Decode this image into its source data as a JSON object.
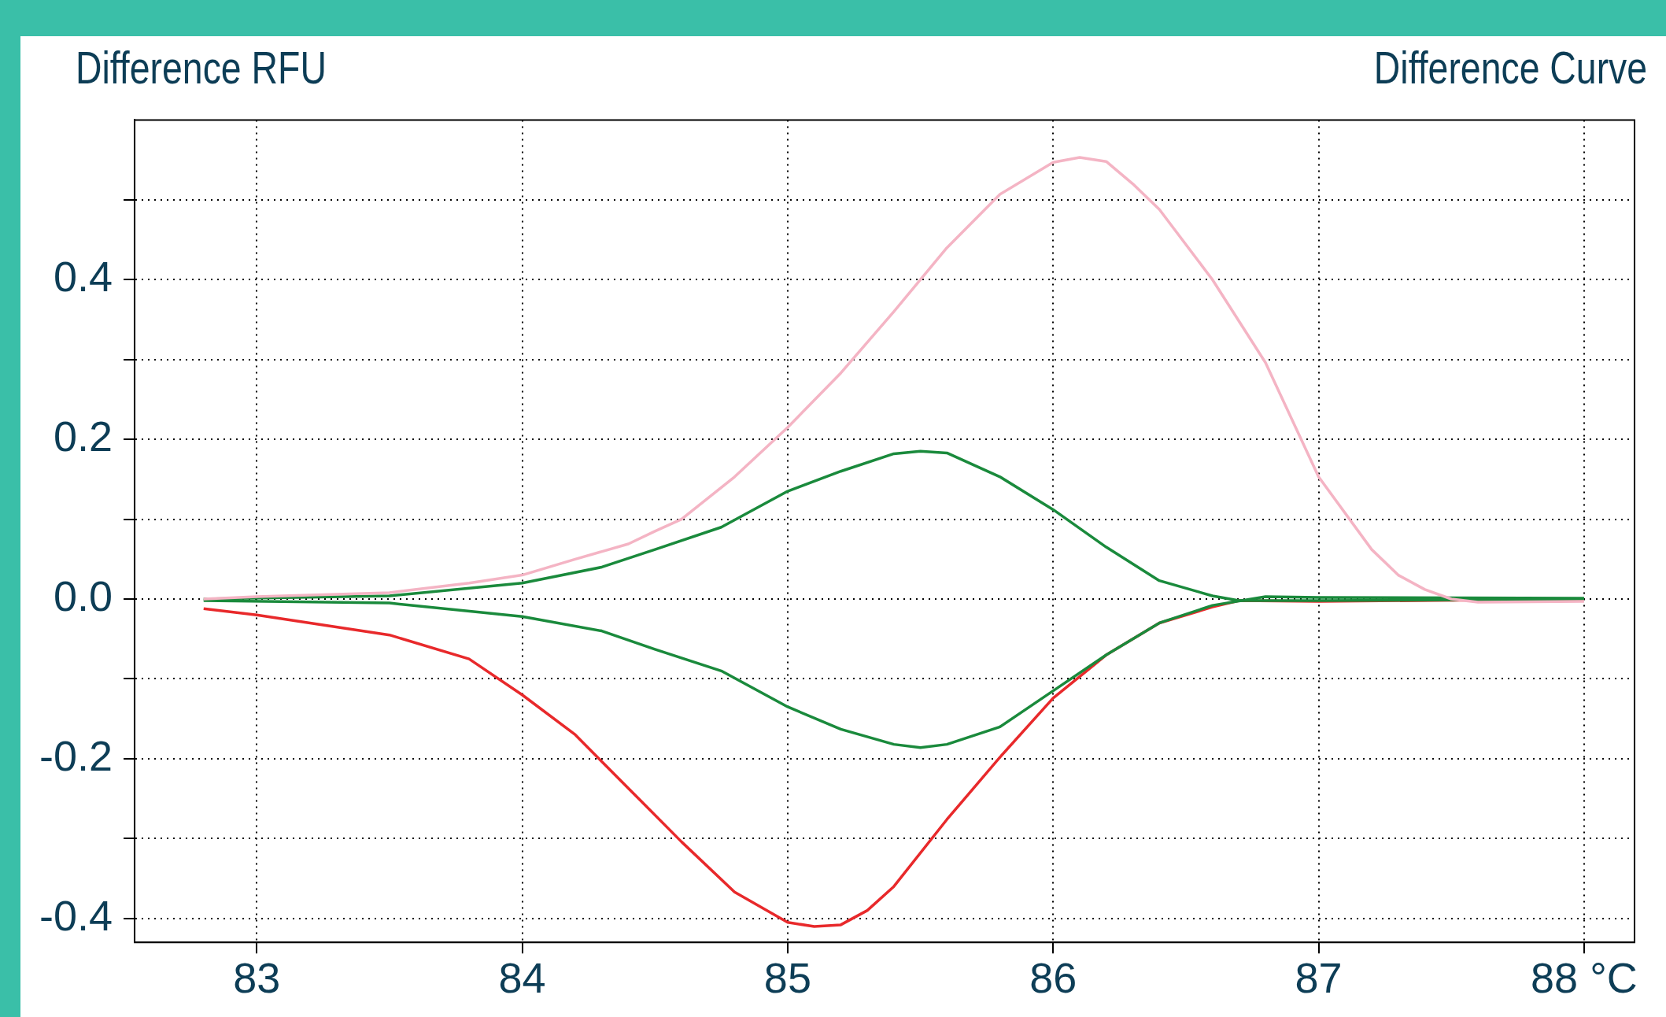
{
  "chart_data": {
    "type": "line",
    "title": "Difference Curve",
    "ylabel": "Difference RFU",
    "xlim": [
      82.54,
      88.19
    ],
    "ylim": [
      -0.43,
      0.6
    ],
    "xticks": [
      83,
      84,
      85,
      86,
      87,
      {
        "value": 88,
        "label": "88 °C"
      }
    ],
    "yticks": [
      {
        "value": -0.4,
        "label": "-0.4"
      },
      {
        "value": -0.3,
        "label": null
      },
      {
        "value": -0.2,
        "label": "-0.2"
      },
      {
        "value": -0.1,
        "label": null
      },
      {
        "value": 0,
        "label": "0.0"
      },
      {
        "value": 0.1,
        "label": null
      },
      {
        "value": 0.2,
        "label": "0.2"
      },
      {
        "value": 0.3,
        "label": null
      },
      {
        "value": 0.4,
        "label": "0.4"
      },
      {
        "value": 0.5,
        "label": null
      }
    ],
    "grid": true,
    "legend": false,
    "marker": "none",
    "line_style": "solid",
    "series": [
      {
        "color": "#f4b4c4",
        "x": [
          82.8,
          83.0,
          83.5,
          83.8,
          84.0,
          84.2,
          84.4,
          84.5,
          84.6,
          84.8,
          85.0,
          85.2,
          85.4,
          85.6,
          85.8,
          86.0,
          86.1,
          86.2,
          86.3,
          86.4,
          86.6,
          86.8,
          87.0,
          87.2,
          87.3,
          87.4,
          87.5,
          87.6,
          88.0
        ],
        "values": [
          0.0,
          0.003,
          0.008,
          0.02,
          0.03,
          0.05,
          0.069,
          0.085,
          0.1,
          0.153,
          0.215,
          0.283,
          0.36,
          0.44,
          0.507,
          0.547,
          0.553,
          0.548,
          0.52,
          0.488,
          0.4,
          0.296,
          0.153,
          0.062,
          0.03,
          0.012,
          0.0,
          -0.004,
          -0.003
        ]
      },
      {
        "color": "#1a8a3c",
        "x": [
          82.8,
          83.5,
          84.0,
          84.3,
          84.5,
          84.75,
          85.0,
          85.2,
          85.4,
          85.5,
          85.6,
          85.8,
          86.0,
          86.2,
          86.4,
          86.6,
          86.7,
          87.0,
          88.0
        ],
        "values": [
          0.0,
          0.004,
          0.02,
          0.04,
          0.062,
          0.09,
          0.135,
          0.16,
          0.182,
          0.185,
          0.183,
          0.153,
          0.112,
          0.065,
          0.023,
          0.004,
          -0.002,
          -0.002,
          0.0
        ]
      },
      {
        "color": "#1a8a3c",
        "x": [
          82.8,
          83.5,
          84.0,
          84.3,
          84.5,
          84.75,
          85.0,
          85.2,
          85.4,
          85.5,
          85.6,
          85.8,
          86.0,
          86.2,
          86.4,
          86.6,
          86.8,
          87.0,
          88.0
        ],
        "values": [
          -0.002,
          -0.005,
          -0.022,
          -0.04,
          -0.063,
          -0.09,
          -0.135,
          -0.163,
          -0.182,
          -0.186,
          -0.182,
          -0.16,
          -0.115,
          -0.07,
          -0.03,
          -0.008,
          0.003,
          0.002,
          0.001
        ]
      },
      {
        "color": "#e8292b",
        "x": [
          82.8,
          83.0,
          83.5,
          83.8,
          84.0,
          84.2,
          84.4,
          84.6,
          84.8,
          85.0,
          85.1,
          85.2,
          85.3,
          85.4,
          85.6,
          85.8,
          86.0,
          86.2,
          86.4,
          86.6,
          86.7,
          87.0,
          88.0
        ],
        "values": [
          -0.012,
          -0.02,
          -0.045,
          -0.075,
          -0.12,
          -0.17,
          -0.237,
          -0.304,
          -0.367,
          -0.405,
          -0.41,
          -0.408,
          -0.39,
          -0.36,
          -0.276,
          -0.198,
          -0.124,
          -0.07,
          -0.03,
          -0.01,
          -0.002,
          -0.003,
          0.0
        ]
      }
    ]
  }
}
